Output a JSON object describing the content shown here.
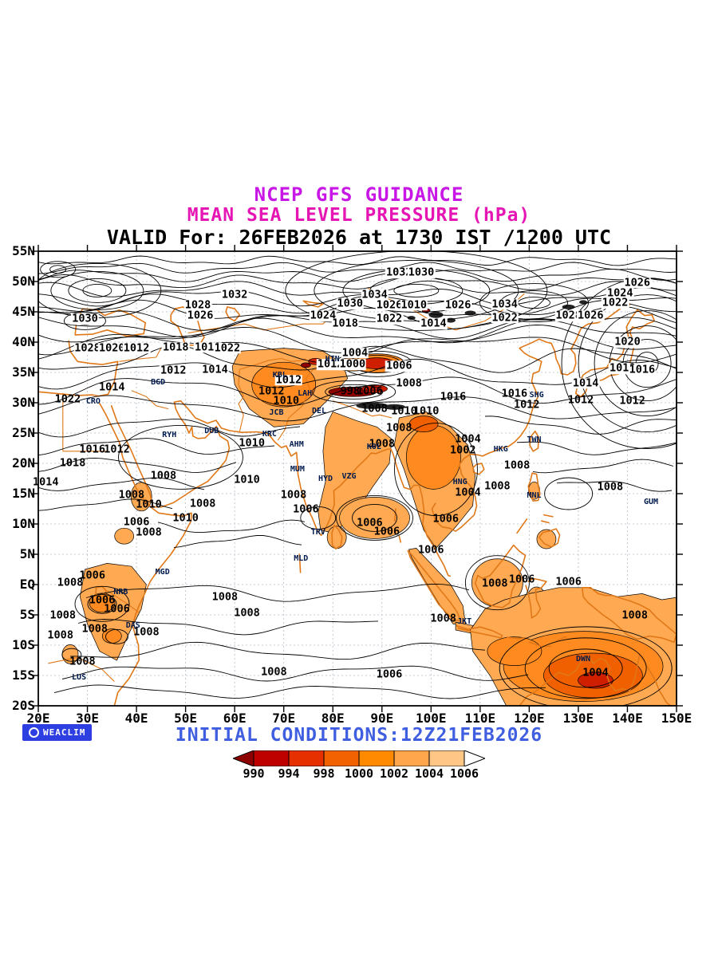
{
  "header": {
    "line1": "NCEP GFS GUIDANCE",
    "line2": "MEAN SEA LEVEL PRESSURE (hPa)",
    "line3": "VALID For: 26FEB2026 at 1730 IST /1200 UTC"
  },
  "footer": {
    "logo_text": "WEACLIM",
    "initial_conditions": "INITIAL CONDITIONS:12Z21FEB2026"
  },
  "axes": {
    "lat": [
      "55N",
      "50N",
      "45N",
      "40N",
      "35N",
      "30N",
      "25N",
      "20N",
      "15N",
      "10N",
      "5N",
      "EQ",
      "5S",
      "10S",
      "15S",
      "20S"
    ],
    "lon": [
      "20E",
      "30E",
      "40E",
      "50E",
      "60E",
      "70E",
      "80E",
      "90E",
      "100E",
      "110E",
      "120E",
      "130E",
      "140E",
      "150E"
    ]
  },
  "colorbar": {
    "values": [
      "990",
      "994",
      "998",
      "1000",
      "1002",
      "1004",
      "1006"
    ],
    "cell_colors": [
      "#bf0000",
      "#e63000",
      "#f26200",
      "#ff8a00",
      "#ffa64d",
      "#ffc685"
    ],
    "below_color": "#8c0000",
    "above_color": "#ffffff"
  },
  "palette": {
    "title1": "#c816e6",
    "title2": "#e616b4",
    "valid": "#000000",
    "footer_blue": "#3f5fe0",
    "logo_bg": "#2d3fe0",
    "coast": "#e07818",
    "grid": "#b3bdc9",
    "contour": "#000000",
    "fill_light": "#ffa952",
    "fill_mid": "#ff8a1f",
    "fill_deep": "#f06000",
    "fill_red": "#cf1f00",
    "fill_darkred": "#8c0000",
    "dark_spot": "#232323"
  },
  "contour_labels": [
    {
      "v": "1032",
      "lon": 60,
      "lat": 47.8
    },
    {
      "v": "1028",
      "lon": 52.5,
      "lat": 46.0
    },
    {
      "v": "1026",
      "lon": 53,
      "lat": 44.4
    },
    {
      "v": "1030",
      "lon": 29.5,
      "lat": 43.8
    },
    {
      "v": "1032",
      "lon": 93.5,
      "lat": 51.4
    },
    {
      "v": "1030",
      "lon": 98,
      "lat": 51.4
    },
    {
      "v": "1034",
      "lon": 88.5,
      "lat": 47.7
    },
    {
      "v": "1030",
      "lon": 83.5,
      "lat": 46.3
    },
    {
      "v": "1026",
      "lon": 91.5,
      "lat": 46.1
    },
    {
      "v": "1010",
      "lon": 96.5,
      "lat": 46.1
    },
    {
      "v": "1026",
      "lon": 105.5,
      "lat": 46.1
    },
    {
      "v": "1034",
      "lon": 115,
      "lat": 46.2
    },
    {
      "v": "1024",
      "lon": 78,
      "lat": 44.3
    },
    {
      "v": "1018",
      "lon": 82.5,
      "lat": 43.0
    },
    {
      "v": "1022",
      "lon": 91.5,
      "lat": 43.8
    },
    {
      "v": "1014",
      "lon": 100.5,
      "lat": 43.0
    },
    {
      "v": "1022",
      "lon": 115,
      "lat": 44.0
    },
    {
      "v": "1028",
      "lon": 128,
      "lat": 44.3
    },
    {
      "v": "1026",
      "lon": 132.5,
      "lat": 44.3
    },
    {
      "v": "1024",
      "lon": 138.5,
      "lat": 48.0
    },
    {
      "v": "1022",
      "lon": 137.5,
      "lat": 46.4
    },
    {
      "v": "1026",
      "lon": 142,
      "lat": 49.8
    },
    {
      "v": "1020",
      "lon": 140,
      "lat": 40.0
    },
    {
      "v": "1018",
      "lon": 139,
      "lat": 35.6
    },
    {
      "v": "1016",
      "lon": 143,
      "lat": 35.4
    },
    {
      "v": "1028",
      "lon": 30,
      "lat": 39.0
    },
    {
      "v": "1020",
      "lon": 35,
      "lat": 39.0
    },
    {
      "v": "1012",
      "lon": 40,
      "lat": 39.0
    },
    {
      "v": "1018",
      "lon": 48,
      "lat": 39.1
    },
    {
      "v": "1010",
      "lon": 54.5,
      "lat": 39.1
    },
    {
      "v": "1022",
      "lon": 58.5,
      "lat": 39.0
    },
    {
      "v": "1012",
      "lon": 47.5,
      "lat": 35.2
    },
    {
      "v": "1014",
      "lon": 56,
      "lat": 35.4
    },
    {
      "v": "1014",
      "lon": 35,
      "lat": 32.5
    },
    {
      "v": "1022",
      "lon": 26,
      "lat": 30.5
    },
    {
      "v": "1014",
      "lon": 131.5,
      "lat": 33.2
    },
    {
      "v": "1012",
      "lon": 130.5,
      "lat": 30.4
    },
    {
      "v": "1004",
      "lon": 84.5,
      "lat": 38.2
    },
    {
      "v": "1012",
      "lon": 79.5,
      "lat": 36.3
    },
    {
      "v": "1000",
      "lon": 84,
      "lat": 36.3
    },
    {
      "v": "1006",
      "lon": 93.5,
      "lat": 36.0
    },
    {
      "v": "1008",
      "lon": 95.5,
      "lat": 33.2
    },
    {
      "v": "998",
      "lon": 83.5,
      "lat": 31.9
    },
    {
      "v": "1006",
      "lon": 87.5,
      "lat": 31.9
    },
    {
      "v": "1012",
      "lon": 67.5,
      "lat": 31.9
    },
    {
      "v": "1012",
      "lon": 71,
      "lat": 33.7
    },
    {
      "v": "1016",
      "lon": 104.5,
      "lat": 30.9
    },
    {
      "v": "1016",
      "lon": 117,
      "lat": 31.4
    },
    {
      "v": "1012",
      "lon": 119.5,
      "lat": 29.6
    },
    {
      "v": "1008",
      "lon": 88.5,
      "lat": 29.0
    },
    {
      "v": "1010",
      "lon": 94.5,
      "lat": 28.6
    },
    {
      "v": "1010",
      "lon": 99,
      "lat": 28.6
    },
    {
      "v": "1010",
      "lon": 70.5,
      "lat": 30.2
    },
    {
      "v": "1012",
      "lon": 141,
      "lat": 30.2
    },
    {
      "v": "1016",
      "lon": 31,
      "lat": 22.2
    },
    {
      "v": "1012",
      "lon": 36,
      "lat": 22.2
    },
    {
      "v": "1018",
      "lon": 27,
      "lat": 20.0
    },
    {
      "v": "1008",
      "lon": 45.5,
      "lat": 17.9
    },
    {
      "v": "1014",
      "lon": 21.5,
      "lat": 16.9
    },
    {
      "v": "1008",
      "lon": 39,
      "lat": 14.7
    },
    {
      "v": "1010",
      "lon": 42.5,
      "lat": 13.2
    },
    {
      "v": "1006",
      "lon": 40,
      "lat": 10.3
    },
    {
      "v": "1008",
      "lon": 42.5,
      "lat": 8.6
    },
    {
      "v": "1010",
      "lon": 50,
      "lat": 10.9
    },
    {
      "v": "1008",
      "lon": 53.5,
      "lat": 13.3
    },
    {
      "v": "1010",
      "lon": 62.5,
      "lat": 17.3
    },
    {
      "v": "1010",
      "lon": 63.5,
      "lat": 23.3
    },
    {
      "v": "1008",
      "lon": 72,
      "lat": 14.8
    },
    {
      "v": "1006",
      "lon": 74.5,
      "lat": 12.4
    },
    {
      "v": "1008",
      "lon": 90,
      "lat": 23.1
    },
    {
      "v": "1008",
      "lon": 93.5,
      "lat": 25.8
    },
    {
      "v": "1006",
      "lon": 87.5,
      "lat": 10.1
    },
    {
      "v": "1006",
      "lon": 91,
      "lat": 8.7
    },
    {
      "v": "1004",
      "lon": 107.5,
      "lat": 23.9
    },
    {
      "v": "1002",
      "lon": 106.5,
      "lat": 22.1
    },
    {
      "v": "1004",
      "lon": 107.5,
      "lat": 15.1
    },
    {
      "v": "1008",
      "lon": 117.5,
      "lat": 19.6
    },
    {
      "v": "1008",
      "lon": 113.5,
      "lat": 16.2
    },
    {
      "v": "1008",
      "lon": 136.5,
      "lat": 16.0
    },
    {
      "v": "1006",
      "lon": 103,
      "lat": 10.8
    },
    {
      "v": "1006",
      "lon": 100,
      "lat": 5.6
    },
    {
      "v": "1006",
      "lon": 118.5,
      "lat": 0.8
    },
    {
      "v": "1008",
      "lon": 113,
      "lat": 0.1
    },
    {
      "v": "1006",
      "lon": 128,
      "lat": 0.4
    },
    {
      "v": "1008",
      "lon": 26.5,
      "lat": 0.2
    },
    {
      "v": "1006",
      "lon": 31,
      "lat": 1.5
    },
    {
      "v": "1008",
      "lon": 58,
      "lat": -2.1
    },
    {
      "v": "1006",
      "lon": 33,
      "lat": -2.6
    },
    {
      "v": "1006",
      "lon": 36,
      "lat": -4.1
    },
    {
      "v": "1008",
      "lon": 25,
      "lat": -5.1
    },
    {
      "v": "1008",
      "lon": 62.5,
      "lat": -4.7
    },
    {
      "v": "1008",
      "lon": 102.5,
      "lat": -5.6
    },
    {
      "v": "1008",
      "lon": 141.5,
      "lat": -5.1
    },
    {
      "v": "1008",
      "lon": 31.5,
      "lat": -7.4
    },
    {
      "v": "1008",
      "lon": 42,
      "lat": -7.9
    },
    {
      "v": "1008",
      "lon": 24.5,
      "lat": -8.4
    },
    {
      "v": "1008",
      "lon": 29,
      "lat": -12.8
    },
    {
      "v": "1008",
      "lon": 68,
      "lat": -14.5
    },
    {
      "v": "1006",
      "lon": 91.5,
      "lat": -14.9
    },
    {
      "v": "1004",
      "lon": 133.5,
      "lat": -14.6
    }
  ],
  "stations": [
    {
      "id": "HTN",
      "lon": 79.9,
      "lat": 37.1
    },
    {
      "id": "KBL",
      "lon": 69.2,
      "lat": 34.5
    },
    {
      "id": "LAH",
      "lon": 74.3,
      "lat": 31.5
    },
    {
      "id": "DEL",
      "lon": 77.2,
      "lat": 28.6
    },
    {
      "id": "JCB",
      "lon": 68.5,
      "lat": 28.3
    },
    {
      "id": "RYH",
      "lon": 46.7,
      "lat": 24.6
    },
    {
      "id": "DUB",
      "lon": 55.3,
      "lat": 25.2
    },
    {
      "id": "KRC",
      "lon": 67.1,
      "lat": 24.8
    },
    {
      "id": "AHM",
      "lon": 72.6,
      "lat": 23.0
    },
    {
      "id": "KOL",
      "lon": 88.4,
      "lat": 22.6
    },
    {
      "id": "MUM",
      "lon": 72.8,
      "lat": 19.0
    },
    {
      "id": "HYD",
      "lon": 78.5,
      "lat": 17.4
    },
    {
      "id": "VZG",
      "lon": 83.3,
      "lat": 17.7
    },
    {
      "id": "TRV",
      "lon": 77.0,
      "lat": 8.5
    },
    {
      "id": "MLD",
      "lon": 73.5,
      "lat": 4.2
    },
    {
      "id": "MGD",
      "lon": 45.3,
      "lat": 2.0
    },
    {
      "id": "NRB",
      "lon": 36.8,
      "lat": -1.3
    },
    {
      "id": "DAS",
      "lon": 39.3,
      "lat": -6.8
    },
    {
      "id": "LUS",
      "lon": 28.3,
      "lat": -15.4
    },
    {
      "id": "CRO",
      "lon": 31.2,
      "lat": 30.1
    },
    {
      "id": "BGD",
      "lon": 44.4,
      "lat": 33.3
    },
    {
      "id": "SHG",
      "lon": 121.5,
      "lat": 31.2
    },
    {
      "id": "TWN",
      "lon": 121.0,
      "lat": 23.8
    },
    {
      "id": "HKG",
      "lon": 114.2,
      "lat": 22.3
    },
    {
      "id": "HNG",
      "lon": 105.9,
      "lat": 16.8
    },
    {
      "id": "MNL",
      "lon": 121.0,
      "lat": 14.6
    },
    {
      "id": "GUM",
      "lon": 144.8,
      "lat": 13.5
    },
    {
      "id": "DWN",
      "lon": 131.0,
      "lat": -12.4
    },
    {
      "id": "JKT",
      "lon": 106.8,
      "lat": -6.2
    }
  ]
}
